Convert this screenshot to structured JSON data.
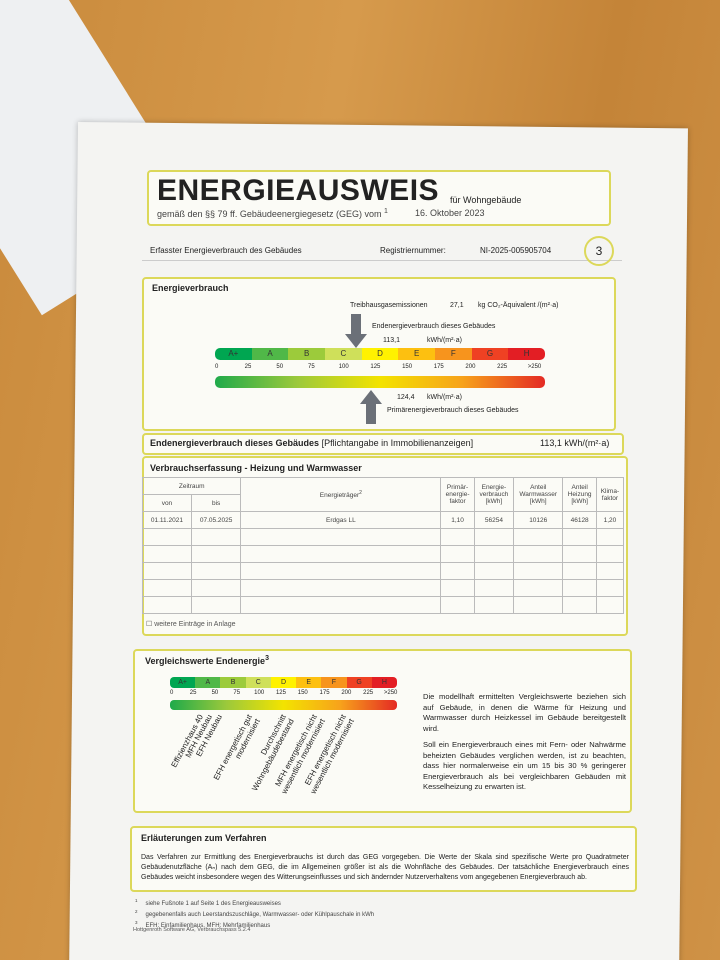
{
  "header": {
    "title": "ENERGIEAUSWEIS",
    "subtitle": "für Wohngebäude",
    "law": "gemäß den §§ 79 ff. Gebäudeenergiegesetz (GEG) vom",
    "law_note": "1",
    "date": "16. Oktober 2023"
  },
  "section": {
    "label": "Erfasster Energieverbrauch des Gebäudes",
    "reg_label": "Registriernummer:",
    "reg_number": "NI-2025-005905704",
    "page": "3"
  },
  "energy": {
    "title": "Energieverbrauch",
    "emissions_label": "Treibhausgasemissionen",
    "emissions_value": "27,1",
    "emissions_unit": "kg CO₂-Äquivalent /(m²·a)",
    "end_label": "Endenergieverbrauch dieses Gebäudes",
    "end_value": "113,1",
    "end_unit": "kWh/(m²·a)",
    "primary_value": "124,4",
    "primary_unit": "kWh/(m²·a)",
    "primary_label": "Primärenergieverbrauch dieses Gebäudes",
    "classes": [
      "A+",
      "A",
      "B",
      "C",
      "D",
      "E",
      "F",
      "G",
      "H"
    ],
    "scale": [
      "0",
      "25",
      "50",
      "75",
      "100",
      "125",
      "150",
      "175",
      "200",
      "225",
      ">250"
    ]
  },
  "summary": {
    "label": "Endenergieverbrauch dieses Gebäudes",
    "note": "[Pflichtangabe in Immobilienanzeigen]",
    "value": "113,1 kWh/(m²·a)"
  },
  "table": {
    "title": "Verbrauchserfassung - Heizung und Warmwasser",
    "period": "Zeitraum",
    "from": "von",
    "to": "bis",
    "carrier": "Energieträger",
    "carrier_note": "2",
    "headers": [
      [
        "Primär-",
        "energie-",
        "faktor"
      ],
      [
        "Energie-",
        "verbrauch",
        "[kWh]"
      ],
      [
        "Anteil",
        "Warmwasser",
        "[kWh]"
      ],
      [
        "Anteil",
        "Heizung",
        "[kWh]"
      ],
      [
        "Klima-",
        "faktor"
      ]
    ],
    "rows": [
      [
        "01.11.2021",
        "07.05.2025",
        "Erdgas LL",
        "1,10",
        "56254",
        "10126",
        "46128",
        "1,20"
      ]
    ],
    "note": "weitere Einträge in Anlage"
  },
  "comparison": {
    "title": "Vergleichswerte Endenergie",
    "title_note": "3",
    "classes": [
      "A+",
      "A",
      "B",
      "C",
      "D",
      "E",
      "F",
      "G",
      "H"
    ],
    "scale": [
      "0",
      "25",
      "50",
      "75",
      "100",
      "125",
      "150",
      "175",
      "200",
      "225",
      ">250"
    ],
    "labels": [
      "Effizienzhaus 40",
      "MFH Neubau",
      "EFH Neubau",
      "EFH energetisch gut modernisiert",
      "Durchschnitt Wohngebäudebestand",
      "MFH energetisch nicht wesentlich modernisiert",
      "EFH energetisch nicht wesentlich modernisiert"
    ],
    "paragraphs": [
      "Die modellhaft ermittelten Vergleichswerte beziehen sich auf Gebäude, in denen die Wärme für Heizung und Warmwasser durch Heizkessel im Gebäude bereitgestellt wird.",
      "Soll ein Energieverbrauch eines mit Fern- oder Nahwärme beheizten Gebäudes verglichen werden, ist zu beachten, dass hier normalerweise ein um 15 bis 30 % geringerer Energieverbrauch als bei vergleichbaren Gebäuden mit Kesselheizung zu erwarten ist."
    ]
  },
  "explanation": {
    "title": "Erläuterungen zum Verfahren",
    "text": "Das Verfahren zur Ermittlung des Energieverbrauchs ist durch das GEG vorgegeben. Die Werte der Skala sind spezifische Werte pro Quadratmeter Gebäudenutzfläche (Aₙ) nach dem GEG, die im Allgemeinen größer ist als die Wohnfläche des Gebäudes. Der tatsächliche Energieverbrauch eines Gebäudes weicht insbesondere wegen des Witterungseinflusses und sich ändernder Nutzerverhaltens vom angegebenen Energieverbrauch ab."
  },
  "footnotes": [
    {
      "mark": "1",
      "text": "siehe Fußnote 1 auf Seite 1 des Energieausweises"
    },
    {
      "mark": "2",
      "text": "gegebenenfalls auch Leerstandszuschläge, Warmwasser- oder Kühlpauschale in kWh"
    },
    {
      "mark": "3",
      "text": "EFH: Einfamilienhaus, MFH: Mehrfamilienhaus"
    }
  ],
  "footer": "Hottgenroth Software AG, Verbrauchspass 5.2.4"
}
